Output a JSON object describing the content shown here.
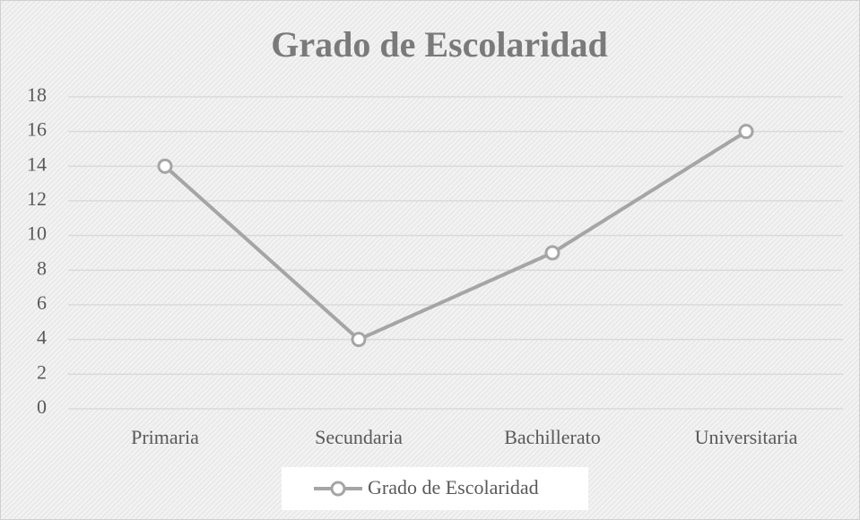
{
  "chart_data": {
    "type": "line",
    "title": "Grado de Escolaridad",
    "categories": [
      "Primaria",
      "Secundaria",
      "Bachillerato",
      "Universitaria"
    ],
    "series": [
      {
        "name": "Grado de Escolaridad",
        "color": "#a5a5a5",
        "values": [
          14,
          4,
          9,
          16
        ]
      }
    ],
    "ylim": [
      0,
      18
    ],
    "yticks": [
      0,
      2,
      4,
      6,
      8,
      10,
      12,
      14,
      16,
      18
    ],
    "grid": true,
    "legend": "bottom"
  }
}
